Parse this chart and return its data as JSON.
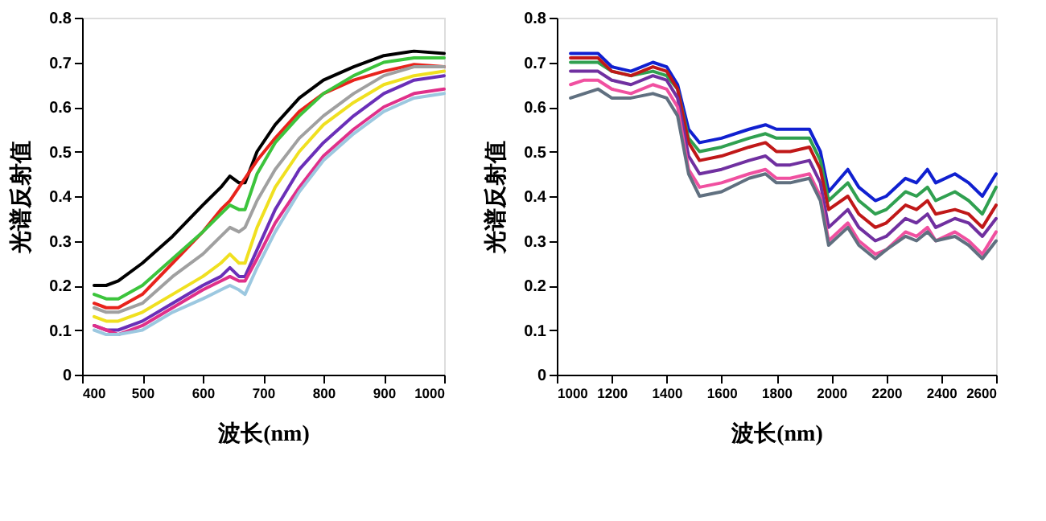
{
  "chart_data": [
    {
      "type": "line",
      "xlabel": "波长(nm)",
      "ylabel": "光谱反射值",
      "xlim": [
        400,
        1000
      ],
      "xticks": [
        400,
        500,
        600,
        700,
        800,
        900,
        1000
      ],
      "ylim": [
        0,
        0.8
      ],
      "yticks": [
        0,
        0.1,
        0.2,
        0.3,
        0.4,
        0.5,
        0.6,
        0.7,
        0.8
      ],
      "grid": false,
      "legend": false,
      "marker": "none",
      "line_style": "solid",
      "x": [
        420,
        440,
        460,
        500,
        550,
        600,
        630,
        645,
        660,
        670,
        690,
        720,
        760,
        800,
        850,
        900,
        950,
        1000
      ],
      "series": [
        {
          "color": "#000000",
          "values": [
            0.2,
            0.2,
            0.21,
            0.25,
            0.31,
            0.38,
            0.42,
            0.445,
            0.43,
            0.43,
            0.5,
            0.56,
            0.62,
            0.66,
            0.69,
            0.715,
            0.725,
            0.72
          ]
        },
        {
          "color": "#e8231c",
          "values": [
            0.16,
            0.15,
            0.15,
            0.18,
            0.25,
            0.32,
            0.37,
            0.39,
            0.42,
            0.44,
            0.48,
            0.53,
            0.59,
            0.63,
            0.66,
            0.68,
            0.695,
            0.69
          ]
        },
        {
          "color": "#3cc43c",
          "values": [
            0.18,
            0.17,
            0.17,
            0.2,
            0.26,
            0.32,
            0.36,
            0.38,
            0.37,
            0.37,
            0.45,
            0.52,
            0.58,
            0.63,
            0.67,
            0.7,
            0.71,
            0.71
          ]
        },
        {
          "color": "#a0a0a0",
          "values": [
            0.15,
            0.14,
            0.14,
            0.16,
            0.22,
            0.27,
            0.31,
            0.33,
            0.32,
            0.33,
            0.39,
            0.46,
            0.53,
            0.58,
            0.63,
            0.67,
            0.69,
            0.69
          ]
        },
        {
          "color": "#f0e020",
          "values": [
            0.13,
            0.12,
            0.12,
            0.14,
            0.18,
            0.22,
            0.25,
            0.27,
            0.25,
            0.25,
            0.33,
            0.42,
            0.5,
            0.56,
            0.61,
            0.65,
            0.67,
            0.68
          ]
        },
        {
          "color": "#6a2fb8",
          "values": [
            0.11,
            0.1,
            0.1,
            0.12,
            0.16,
            0.2,
            0.22,
            0.24,
            0.22,
            0.22,
            0.28,
            0.37,
            0.46,
            0.52,
            0.58,
            0.63,
            0.66,
            0.67
          ]
        },
        {
          "color": "#e0308a",
          "values": [
            0.11,
            0.1,
            0.09,
            0.11,
            0.15,
            0.19,
            0.21,
            0.22,
            0.21,
            0.21,
            0.26,
            0.34,
            0.42,
            0.49,
            0.55,
            0.6,
            0.63,
            0.64
          ]
        },
        {
          "color": "#9cc8e0",
          "values": [
            0.1,
            0.09,
            0.09,
            0.1,
            0.14,
            0.17,
            0.19,
            0.2,
            0.19,
            0.18,
            0.24,
            0.32,
            0.41,
            0.48,
            0.54,
            0.59,
            0.62,
            0.63
          ]
        }
      ]
    },
    {
      "type": "line",
      "xlabel": "波长(nm)",
      "ylabel": "光谱反射值",
      "xlim": [
        1000,
        2600
      ],
      "xticks": [
        1000,
        1200,
        1400,
        1600,
        1800,
        2000,
        2200,
        2400,
        2600
      ],
      "ylim": [
        0,
        0.8
      ],
      "yticks": [
        0,
        0.1,
        0.2,
        0.3,
        0.4,
        0.5,
        0.6,
        0.7,
        0.8
      ],
      "grid": false,
      "legend": false,
      "marker": "none",
      "line_style": "solid",
      "x": [
        1050,
        1100,
        1150,
        1200,
        1270,
        1350,
        1400,
        1440,
        1480,
        1520,
        1600,
        1700,
        1760,
        1800,
        1850,
        1920,
        1960,
        1990,
        2060,
        2100,
        2160,
        2200,
        2270,
        2310,
        2350,
        2380,
        2450,
        2500,
        2550,
        2600
      ],
      "series": [
        {
          "color": "#1020d0",
          "values": [
            0.72,
            0.72,
            0.72,
            0.69,
            0.68,
            0.7,
            0.69,
            0.65,
            0.55,
            0.52,
            0.53,
            0.55,
            0.56,
            0.55,
            0.55,
            0.55,
            0.5,
            0.41,
            0.46,
            0.42,
            0.39,
            0.4,
            0.44,
            0.43,
            0.46,
            0.43,
            0.45,
            0.43,
            0.4,
            0.45
          ]
        },
        {
          "color": "#30a050",
          "values": [
            0.7,
            0.7,
            0.7,
            0.68,
            0.67,
            0.68,
            0.67,
            0.64,
            0.53,
            0.5,
            0.51,
            0.53,
            0.54,
            0.53,
            0.53,
            0.53,
            0.48,
            0.39,
            0.43,
            0.39,
            0.36,
            0.37,
            0.41,
            0.4,
            0.42,
            0.39,
            0.41,
            0.39,
            0.36,
            0.42
          ]
        },
        {
          "color": "#c01818",
          "values": [
            0.71,
            0.71,
            0.71,
            0.68,
            0.67,
            0.69,
            0.68,
            0.64,
            0.52,
            0.48,
            0.49,
            0.51,
            0.52,
            0.5,
            0.5,
            0.51,
            0.46,
            0.37,
            0.4,
            0.36,
            0.33,
            0.34,
            0.38,
            0.37,
            0.39,
            0.36,
            0.37,
            0.36,
            0.33,
            0.38
          ]
        },
        {
          "color": "#7030a0",
          "values": [
            0.68,
            0.68,
            0.68,
            0.66,
            0.65,
            0.67,
            0.66,
            0.62,
            0.49,
            0.45,
            0.46,
            0.48,
            0.49,
            0.47,
            0.47,
            0.48,
            0.43,
            0.33,
            0.37,
            0.33,
            0.3,
            0.31,
            0.35,
            0.34,
            0.36,
            0.33,
            0.35,
            0.34,
            0.31,
            0.35
          ]
        },
        {
          "color": "#f050a0",
          "values": [
            0.65,
            0.66,
            0.66,
            0.64,
            0.63,
            0.65,
            0.64,
            0.6,
            0.46,
            0.42,
            0.43,
            0.45,
            0.46,
            0.44,
            0.44,
            0.45,
            0.4,
            0.3,
            0.34,
            0.3,
            0.27,
            0.28,
            0.32,
            0.31,
            0.33,
            0.3,
            0.32,
            0.3,
            0.27,
            0.32
          ]
        },
        {
          "color": "#607080",
          "values": [
            0.62,
            0.63,
            0.64,
            0.62,
            0.62,
            0.63,
            0.62,
            0.58,
            0.45,
            0.4,
            0.41,
            0.44,
            0.45,
            0.43,
            0.43,
            0.44,
            0.39,
            0.29,
            0.33,
            0.29,
            0.26,
            0.28,
            0.31,
            0.3,
            0.32,
            0.3,
            0.31,
            0.29,
            0.26,
            0.3
          ]
        }
      ]
    }
  ]
}
